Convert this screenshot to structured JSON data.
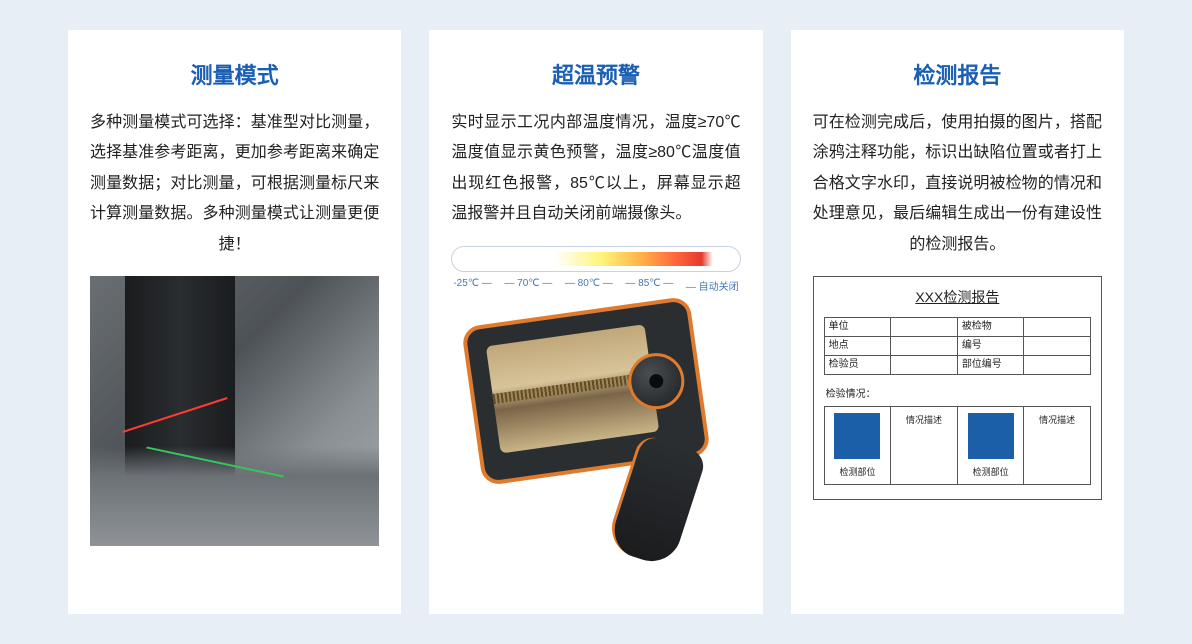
{
  "colors": {
    "page_bg": "#e8eef5",
    "card_bg": "#ffffff",
    "title": "#1a5fb4",
    "body_text": "#222222",
    "accent_orange": "#e07b2e",
    "swatch_blue": "#1a5fa8",
    "temp_label": "#4478b8"
  },
  "cards": [
    {
      "title": "测量模式",
      "body": "多种测量模式可选择：基准型对比测量，选择基准参考距离，更加参考距离来确定测量数据；对比测量，可根据测量标尺来计算测量数据。多种测量模式让测量更便捷！"
    },
    {
      "title": "超温预警",
      "body": "实时显示工况内部温度情况，温度≥70℃温度值显示黄色预警，温度≥80℃温度值出现红色报警，85℃以上，屏幕显示超温报警并且自动关闭前端摄像头。",
      "temp_scale": {
        "gradient_stops": [
          "#ffffff",
          "#fff47a",
          "#ffb347",
          "#ff6a3d",
          "#e53a2f"
        ],
        "labels": [
          "-25℃",
          "70℃",
          "80℃",
          "85℃",
          "自动关闭"
        ]
      }
    },
    {
      "title": "检测报告",
      "body": "可在检测完成后，使用拍摄的图片，搭配涂鸦注释功能，标识出缺陷位置或者打上合格文字水印，直接说明被检物的情况和处理意见，最后编辑生成出一份有建设性的检测报告。",
      "report": {
        "doc_title": "XXX检测报告",
        "info_rows": [
          [
            "单位",
            "",
            "被检物",
            ""
          ],
          [
            "地点",
            "",
            "编号",
            ""
          ],
          [
            "检验员",
            "",
            "部位编号",
            ""
          ]
        ],
        "section_label": "检验情况：",
        "inspect_cells": {
          "desc_head": "情况描述",
          "part_label": "检测部位"
        }
      }
    }
  ]
}
